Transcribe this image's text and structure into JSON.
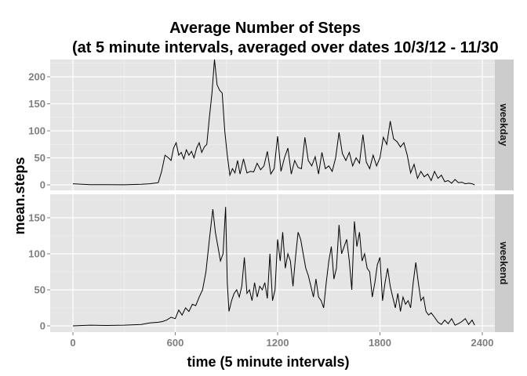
{
  "chart_data": {
    "type": "line",
    "title": "Average Number of Steps",
    "subtitle": "(at 5 minute intervals, averaged over dates 10/3/12 - 11/30",
    "xlabel": "time (5 minute intervals)",
    "ylabel": "mean.steps",
    "xlim": [
      0,
      2355
    ],
    "x_ticks": [
      0,
      600,
      1200,
      1800,
      2400
    ],
    "x_tick_labels": [
      "0",
      "600",
      "1200",
      "1800",
      "2400"
    ],
    "grid": true,
    "facets": [
      {
        "name": "weekday",
        "ylim": [
          0,
          230
        ],
        "y_ticks": [
          0,
          50,
          100,
          150,
          200
        ],
        "y_tick_labels": [
          "0",
          "50",
          "100",
          "150",
          "200"
        ],
        "x": [
          0,
          100,
          200,
          300,
          400,
          450,
          500,
          520,
          540,
          560,
          575,
          590,
          605,
          620,
          635,
          650,
          665,
          680,
          695,
          710,
          725,
          740,
          755,
          770,
          785,
          800,
          815,
          830,
          845,
          860,
          875,
          890,
          905,
          920,
          935,
          950,
          965,
          980,
          1000,
          1020,
          1040,
          1060,
          1080,
          1100,
          1120,
          1140,
          1160,
          1180,
          1200,
          1220,
          1240,
          1260,
          1280,
          1300,
          1320,
          1340,
          1360,
          1380,
          1400,
          1420,
          1440,
          1460,
          1480,
          1500,
          1520,
          1540,
          1560,
          1580,
          1600,
          1620,
          1640,
          1660,
          1680,
          1700,
          1720,
          1740,
          1760,
          1780,
          1800,
          1820,
          1840,
          1860,
          1880,
          1900,
          1920,
          1940,
          1960,
          1980,
          2000,
          2020,
          2040,
          2060,
          2080,
          2100,
          2120,
          2140,
          2160,
          2180,
          2200,
          2220,
          2240,
          2260,
          2280,
          2300,
          2320,
          2340,
          2355
        ],
        "y": [
          2,
          0.5,
          0.3,
          0.2,
          1,
          2,
          4,
          25,
          55,
          50,
          45,
          68,
          78,
          55,
          60,
          48,
          65,
          55,
          62,
          50,
          68,
          78,
          60,
          70,
          75,
          125,
          170,
          232,
          185,
          175,
          170,
          100,
          55,
          18,
          30,
          22,
          45,
          20,
          48,
          22,
          25,
          24,
          40,
          28,
          35,
          62,
          20,
          30,
          90,
          25,
          50,
          68,
          20,
          45,
          32,
          30,
          88,
          45,
          35,
          52,
          20,
          60,
          30,
          35,
          25,
          50,
          97,
          58,
          45,
          60,
          35,
          50,
          40,
          93,
          42,
          30,
          55,
          35,
          50,
          88,
          75,
          118,
          85,
          80,
          70,
          78,
          55,
          22,
          38,
          12,
          25,
          15,
          20,
          8,
          25,
          12,
          18,
          6,
          8,
          3,
          10,
          4,
          5,
          2,
          3,
          2,
          0
        ]
      },
      {
        "name": "weekend",
        "ylim": [
          0,
          170
        ],
        "y_ticks": [
          0,
          50,
          100,
          150
        ],
        "y_tick_labels": [
          "0",
          "50",
          "100",
          "150"
        ],
        "x": [
          0,
          100,
          200,
          300,
          400,
          450,
          500,
          525,
          550,
          575,
          600,
          620,
          640,
          660,
          680,
          700,
          720,
          740,
          760,
          780,
          800,
          820,
          835,
          850,
          865,
          880,
          895,
          905,
          915,
          930,
          945,
          960,
          975,
          990,
          1005,
          1020,
          1035,
          1050,
          1065,
          1080,
          1095,
          1110,
          1125,
          1140,
          1155,
          1170,
          1185,
          1200,
          1215,
          1230,
          1245,
          1260,
          1275,
          1290,
          1305,
          1320,
          1335,
          1350,
          1365,
          1380,
          1395,
          1410,
          1425,
          1440,
          1455,
          1470,
          1485,
          1500,
          1515,
          1530,
          1545,
          1560,
          1575,
          1590,
          1605,
          1620,
          1635,
          1650,
          1665,
          1680,
          1695,
          1710,
          1725,
          1740,
          1755,
          1770,
          1785,
          1800,
          1815,
          1830,
          1845,
          1860,
          1875,
          1890,
          1905,
          1920,
          1935,
          1950,
          1965,
          1980,
          1995,
          2010,
          2025,
          2040,
          2055,
          2070,
          2085,
          2100,
          2120,
          2140,
          2160,
          2180,
          2200,
          2220,
          2240,
          2260,
          2280,
          2300,
          2320,
          2340,
          2355
        ],
        "y": [
          0,
          1,
          0.5,
          1,
          2,
          4,
          5,
          6,
          8,
          12,
          10,
          22,
          15,
          25,
          20,
          30,
          28,
          40,
          50,
          75,
          120,
          162,
          130,
          110,
          90,
          100,
          165,
          60,
          20,
          35,
          45,
          50,
          40,
          55,
          95,
          45,
          50,
          35,
          60,
          40,
          55,
          50,
          60,
          38,
          100,
          35,
          50,
          120,
          90,
          130,
          80,
          100,
          90,
          55,
          95,
          130,
          120,
          100,
          80,
          70,
          55,
          40,
          65,
          40,
          35,
          25,
          60,
          90,
          110,
          65,
          80,
          140,
          100,
          110,
          120,
          90,
          50,
          145,
          110,
          130,
          90,
          100,
          80,
          75,
          40,
          60,
          85,
          95,
          35,
          60,
          80,
          55,
          40,
          25,
          45,
          20,
          40,
          30,
          35,
          25,
          60,
          88,
          60,
          35,
          40,
          20,
          15,
          18,
          12,
          5,
          2,
          8,
          3,
          10,
          1,
          3,
          6,
          10,
          2,
          8,
          1
        ]
      }
    ]
  },
  "colors": {
    "panel_background": "#e5e5e5",
    "grid_major": "#ffffff",
    "grid_minor": "#f2f2f2",
    "strip_background": "#cccccc",
    "line": "#000000",
    "tick_label": "#7f7f7f"
  }
}
